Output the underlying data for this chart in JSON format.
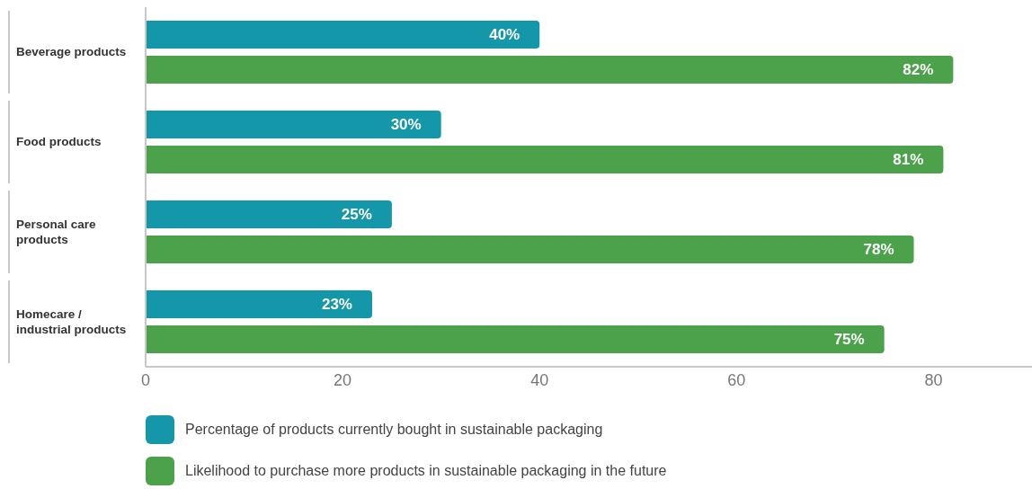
{
  "chart_data": {
    "type": "bar",
    "orientation": "horizontal",
    "categories": [
      "Beverage products",
      "Food products",
      "Personal care products",
      "Homecare / industrial products"
    ],
    "series": [
      {
        "name": "Percentage of products currently bought in sustainable packaging",
        "color": "#1497a8",
        "values": [
          40,
          30,
          25,
          23
        ],
        "value_labels": [
          "40%",
          "30%",
          "25%",
          "23%"
        ]
      },
      {
        "name": "Likelihood to purchase more products in sustainable packaging in the future",
        "color": "#4ca24a",
        "values": [
          82,
          81,
          78,
          75
        ],
        "value_labels": [
          "82%",
          "81%",
          "78%",
          "75%"
        ]
      }
    ],
    "xlim": [
      0,
      90
    ],
    "xticks": [
      0,
      20,
      40,
      60,
      80
    ],
    "grid": false,
    "legend": "bottom"
  }
}
